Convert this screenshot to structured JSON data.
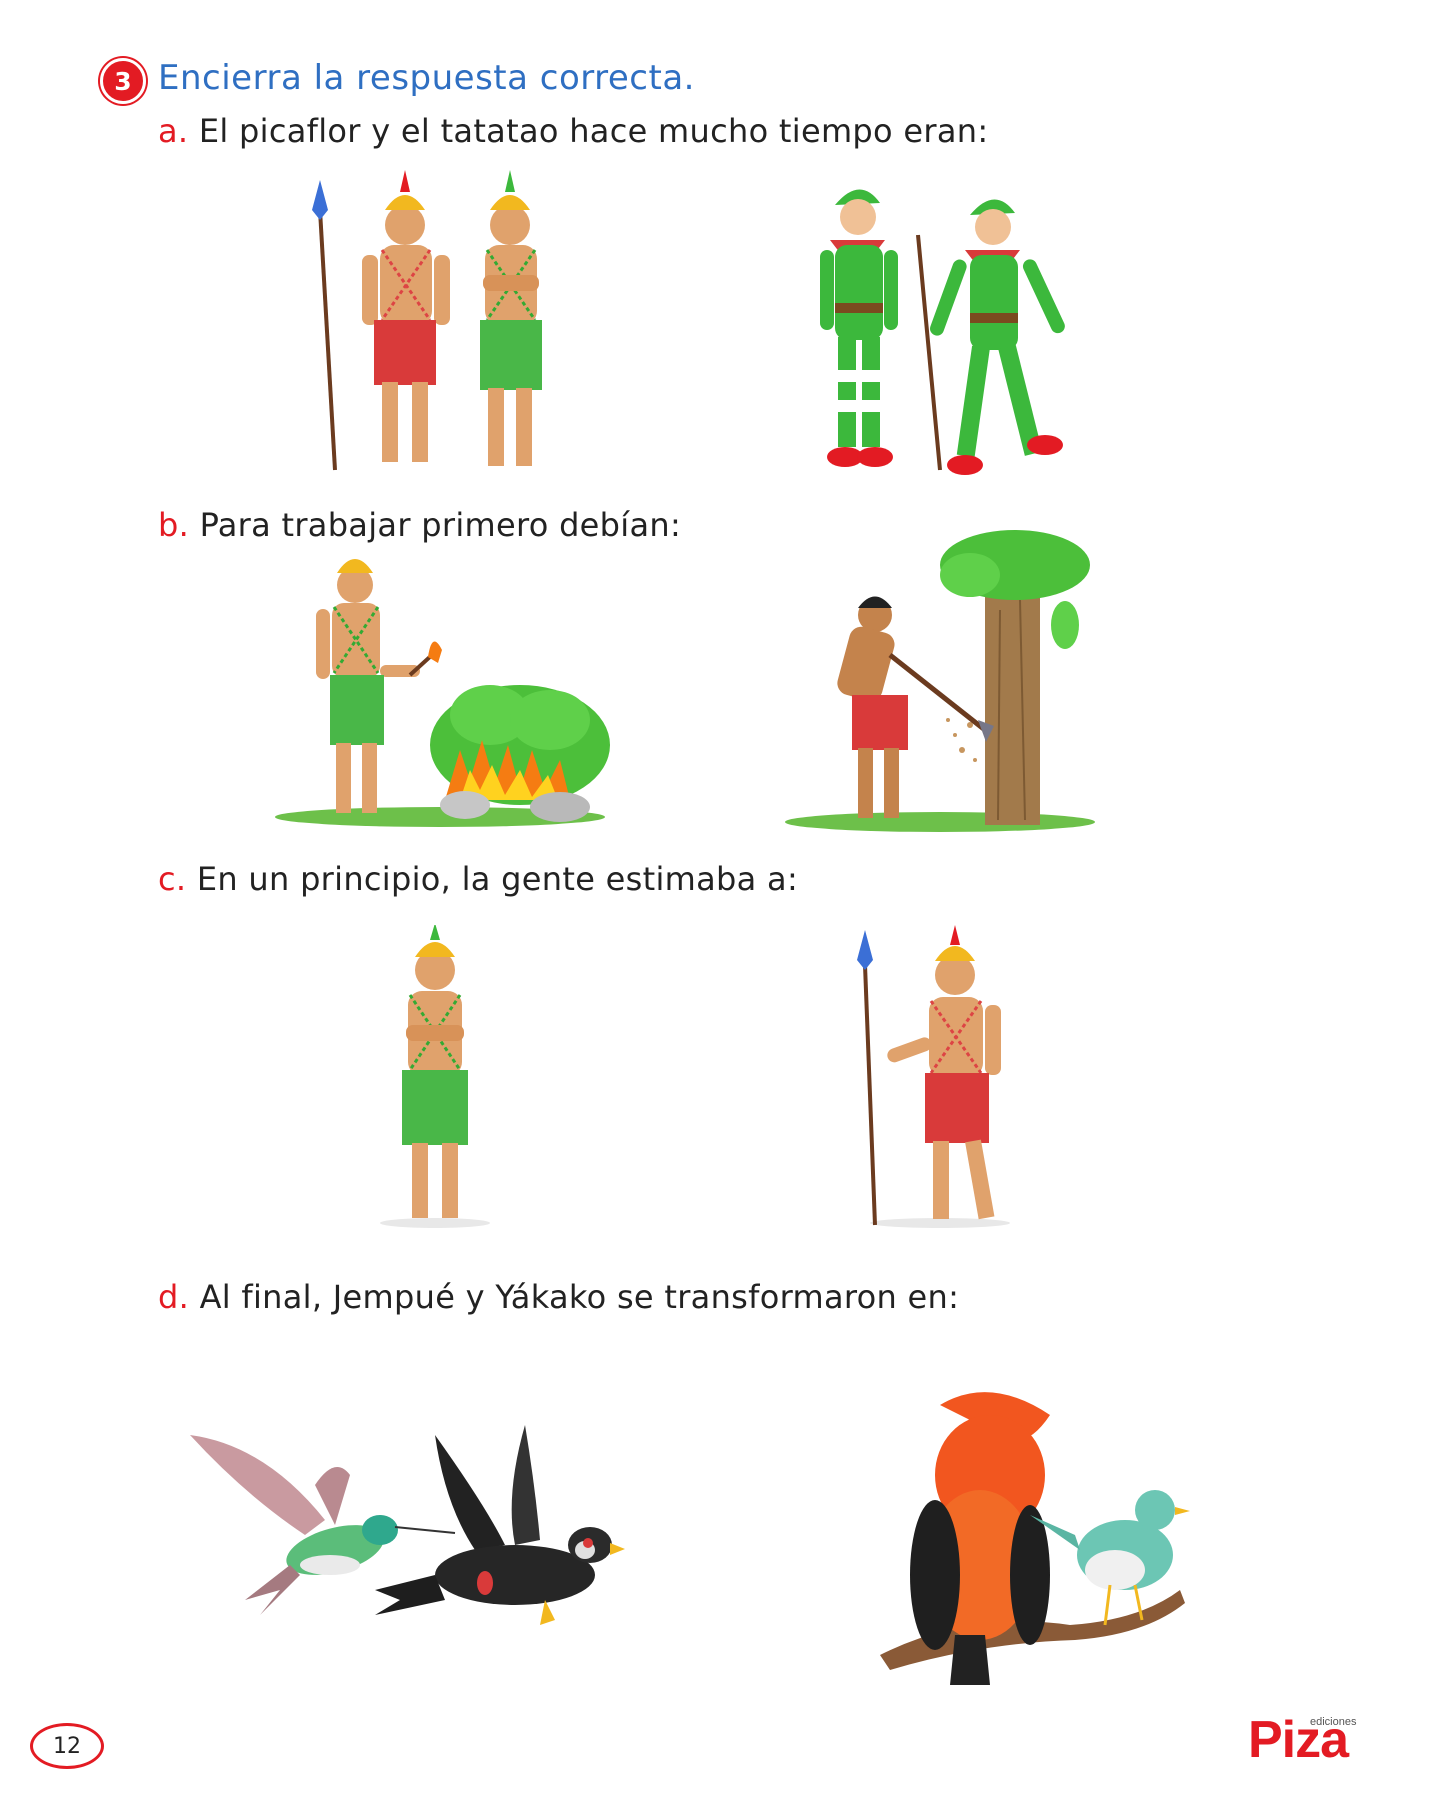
{
  "instruction": {
    "number": "3",
    "text": "Encierra la respuesta correcta."
  },
  "questions": [
    {
      "letter": "a.",
      "text": "El picaflor y el tatatao hace mucho tiempo eran:"
    },
    {
      "letter": "b.",
      "text": "Para trabajar primero debían:"
    },
    {
      "letter": "c.",
      "text": "En un principio, la gente estimaba a:"
    },
    {
      "letter": "d.",
      "text": "Al final, Jempué y Yákako se transformaron en:"
    }
  ],
  "page_number": "12",
  "logo": {
    "brand": "Piza",
    "small": "ediciones"
  },
  "colors": {
    "accent_red": "#e31b23",
    "instruction_blue": "#2f6fc2",
    "green_cloth": "#49b748",
    "red_cloth": "#d93a3a",
    "skin": "#e0a26c",
    "elf_green": "#3cb83c"
  }
}
